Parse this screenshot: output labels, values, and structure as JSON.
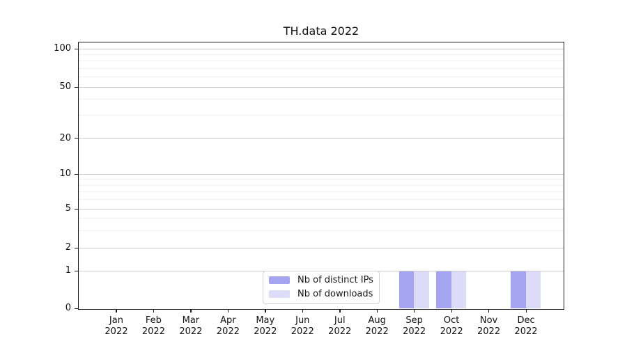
{
  "chart_data": {
    "type": "bar",
    "title": "TH.data 2022",
    "categories": [
      "Jan",
      "Feb",
      "Mar",
      "Apr",
      "May",
      "Jun",
      "Jul",
      "Aug",
      "Sep",
      "Oct",
      "Nov",
      "Dec"
    ],
    "year": "2022",
    "series": [
      {
        "name": "Nb of distinct IPs",
        "color": "#a4a4f0",
        "values": [
          0,
          0,
          0,
          0,
          0,
          0,
          0,
          0,
          1,
          1,
          0,
          1
        ]
      },
      {
        "name": "Nb of downloads",
        "color": "#dcdcf8",
        "values": [
          0,
          0,
          0,
          0,
          0,
          0,
          0,
          0,
          1,
          1,
          0,
          1
        ]
      }
    ],
    "y_axis": {
      "scale": "log-like with zero baseline",
      "major_ticks": [
        100,
        50,
        20,
        10,
        5,
        2,
        1,
        0
      ],
      "minor_gridlines": [
        90,
        80,
        70,
        60,
        40,
        30,
        9,
        8,
        7,
        6,
        4,
        3
      ],
      "range": [
        0,
        112
      ]
    },
    "x_axis": {
      "label_format": "month over year"
    },
    "grid": true,
    "legend": {
      "position": "lower center",
      "entries": [
        "Nb of distinct IPs",
        "Nb of downloads"
      ]
    },
    "colors": {
      "spine": "#1a1a1a",
      "major_grid": "#c9c9cc",
      "minor_grid": "#f0f0f1",
      "text": "#111111"
    }
  }
}
